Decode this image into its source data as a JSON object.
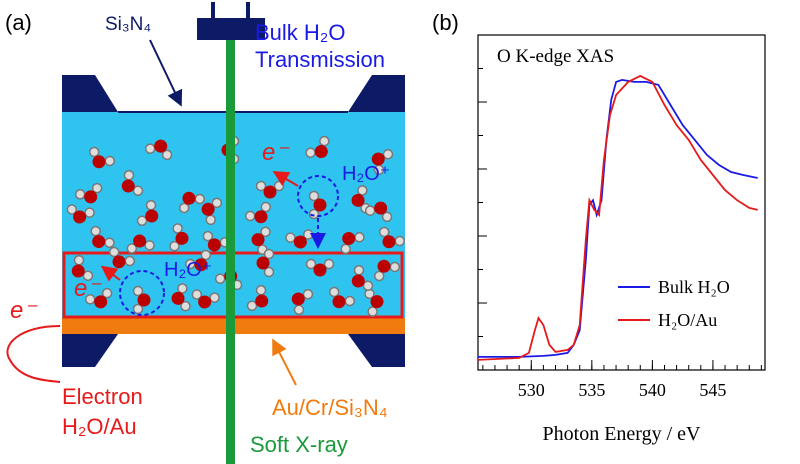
{
  "panel_a": {
    "label": "(a)",
    "window_material": "Si₃N₄",
    "beam_top_line1": "Bulk H₂O",
    "beam_top_line2": "Transmission",
    "electron_top": "e⁻",
    "ion_top": "H₂O⁺",
    "electron_mid": "e⁻",
    "ion_mid": "H₂O⁺",
    "electron_left": "e⁻",
    "detection_line1": "Electron",
    "detection_line2": "H₂O/Au",
    "substrate": "Au/Cr/Si₃N₄",
    "beam": "Soft X-ray"
  },
  "chart_data": {
    "type": "line",
    "panel_label": "(b)",
    "title": "O K-edge XAS",
    "x_label": "Photon Energy / eV",
    "xlim": [
      525.6,
      549.3
    ],
    "xticks": [
      530,
      535,
      540,
      545
    ],
    "ylim": [
      0,
      1
    ],
    "legend": "lower right",
    "series": [
      {
        "name": "Bulk H₂O",
        "color": "#1a1ae6",
        "x": [
          525.6,
          529,
          531,
          532,
          533,
          533.5,
          534,
          534.5,
          534.8,
          535.1,
          535.4,
          535.8,
          536.2,
          536.6,
          537,
          537.5,
          538.5,
          539.5,
          540.5,
          541.5,
          542.5,
          543.5,
          544.5,
          545.5,
          546.5,
          547.5,
          548.7
        ],
        "values": [
          0.039,
          0.039,
          0.042,
          0.045,
          0.051,
          0.075,
          0.119,
          0.328,
          0.493,
          0.507,
          0.463,
          0.507,
          0.687,
          0.806,
          0.86,
          0.866,
          0.86,
          0.86,
          0.851,
          0.791,
          0.731,
          0.687,
          0.642,
          0.612,
          0.591,
          0.582,
          0.573
        ]
      },
      {
        "name": "H₂O/Au",
        "color": "#e61a1a",
        "x": [
          525.6,
          529,
          529.8,
          530.3,
          530.6,
          531,
          531.5,
          532,
          533,
          533.5,
          534,
          534.5,
          534.8,
          535.2,
          535.6,
          536,
          536.5,
          537,
          538,
          539,
          540,
          541,
          542,
          543,
          544,
          545,
          546,
          547,
          548,
          548.7
        ],
        "values": [
          0.03,
          0.036,
          0.051,
          0.119,
          0.155,
          0.134,
          0.075,
          0.054,
          0.06,
          0.075,
          0.134,
          0.388,
          0.507,
          0.478,
          0.463,
          0.627,
          0.761,
          0.821,
          0.86,
          0.878,
          0.86,
          0.791,
          0.731,
          0.687,
          0.627,
          0.582,
          0.537,
          0.507,
          0.484,
          0.478
        ]
      }
    ]
  }
}
